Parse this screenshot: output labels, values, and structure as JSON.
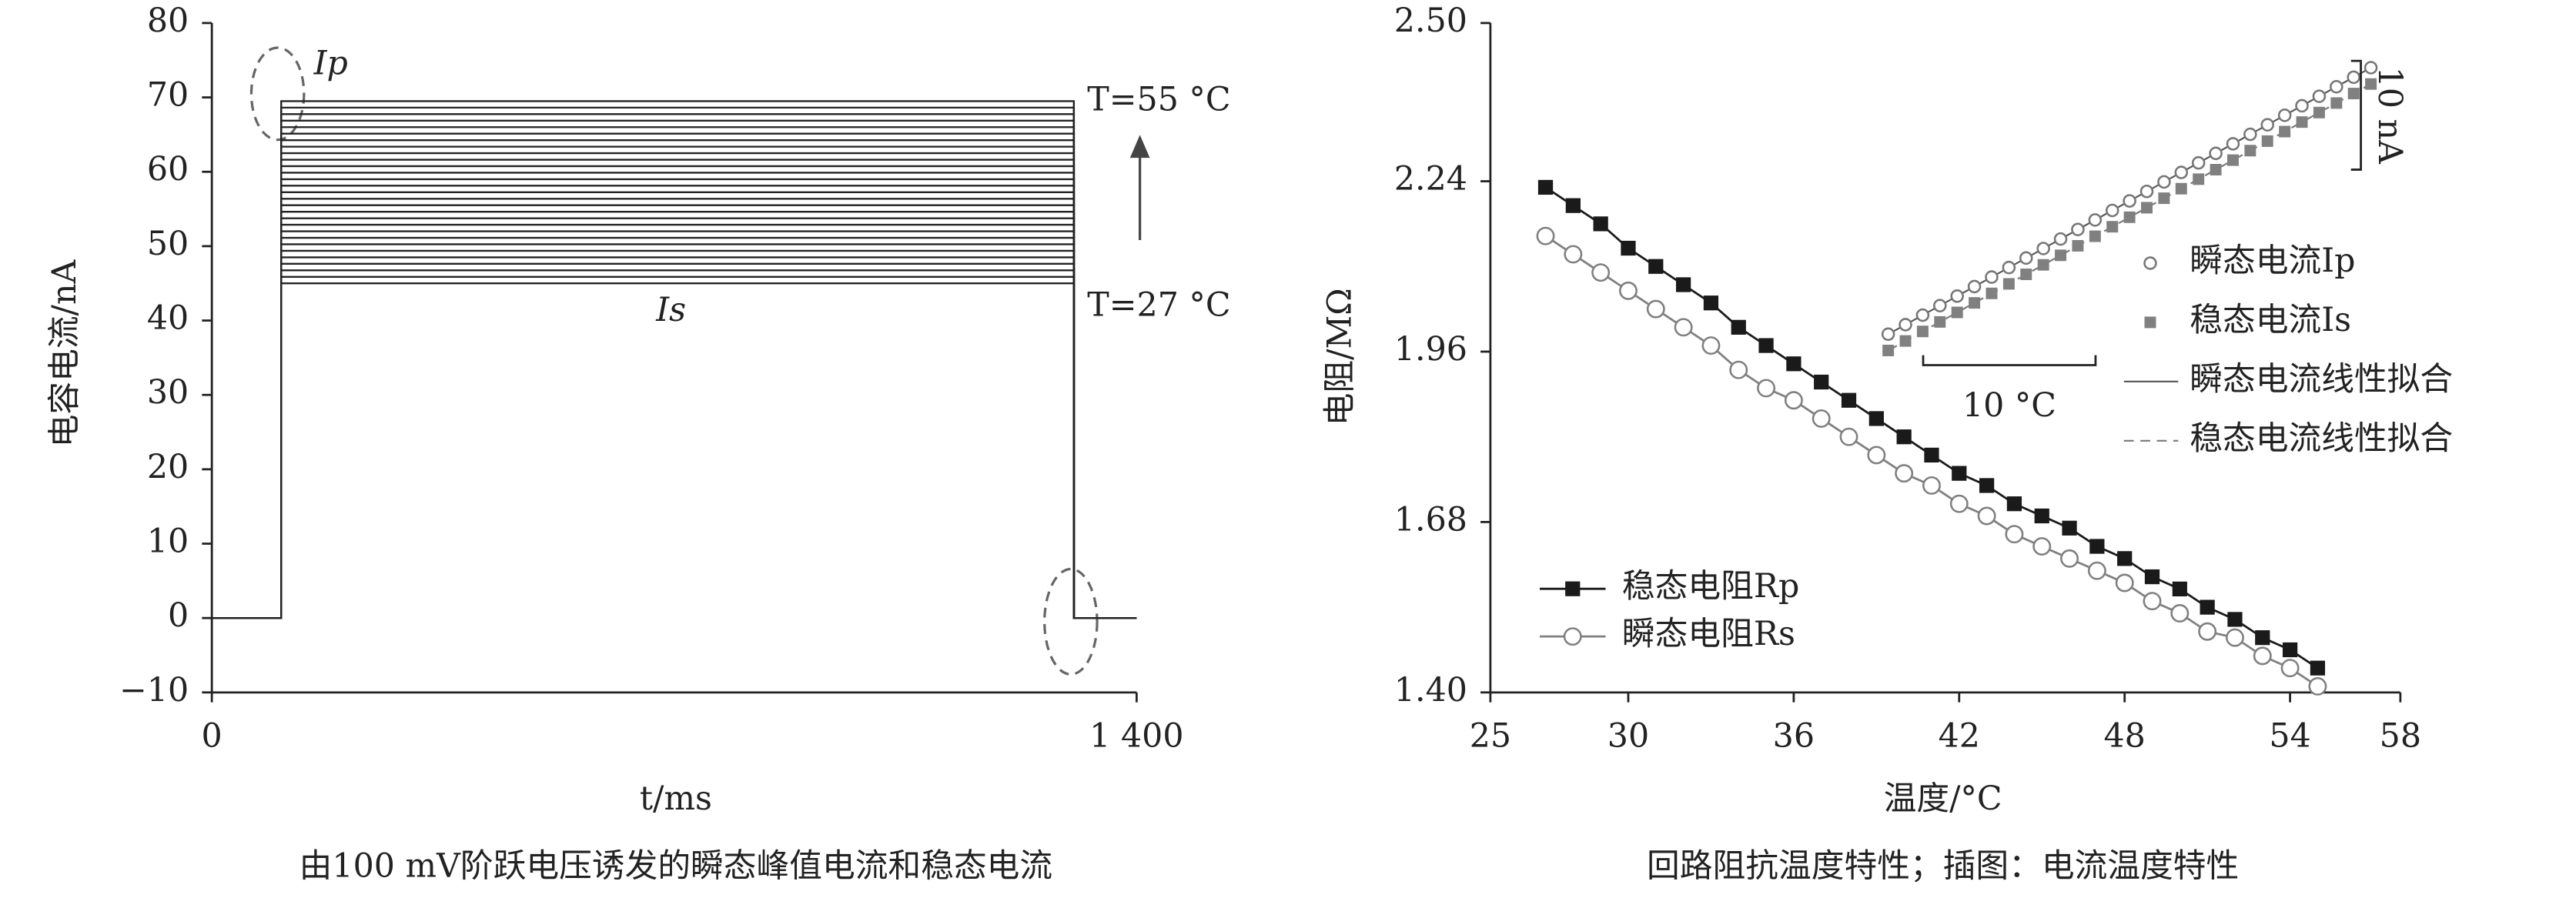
{
  "chart_data": [
    {
      "type": "line",
      "caption": "由100 mV阶跃电压诱发的瞬态峰值电流和稳态电流",
      "xlabel": "t/ms",
      "ylabel": "电容电流/nA",
      "annotations": [
        "Ip",
        "Is",
        "T=55 °C",
        "T=27 °C"
      ],
      "xlim": [
        0,
        1400
      ],
      "xticks": [
        0,
        {
          "value": 1400,
          "label": "1 400"
        }
      ],
      "ylim": [
        -10,
        80
      ],
      "yticks": [
        {
          "value": -10,
          "label": "−10"
        },
        0,
        10,
        20,
        30,
        40,
        50,
        60,
        70,
        80
      ],
      "color": "#222222",
      "x": [
        0,
        105,
        105,
        1305,
        1305,
        1400
      ],
      "series": [
        {
          "values": [
            0,
            0,
            45,
            45,
            0,
            0
          ]
        },
        {
          "values": [
            0,
            0,
            45.875,
            45.875,
            0,
            0
          ]
        },
        {
          "values": [
            0,
            0,
            46.75,
            46.75,
            0,
            0
          ]
        },
        {
          "values": [
            0,
            0,
            47.625,
            47.625,
            0,
            0
          ]
        },
        {
          "values": [
            0,
            0,
            48.5,
            48.5,
            0,
            0
          ]
        },
        {
          "values": [
            0,
            0,
            49.375,
            49.375,
            0,
            0
          ]
        },
        {
          "values": [
            0,
            0,
            50.25,
            50.25,
            0,
            0
          ]
        },
        {
          "values": [
            0,
            0,
            51.125,
            51.125,
            0,
            0
          ]
        },
        {
          "values": [
            0,
            0,
            52,
            52,
            0,
            0
          ]
        },
        {
          "values": [
            0,
            0,
            52.875,
            52.875,
            0,
            0
          ]
        },
        {
          "values": [
            0,
            0,
            53.75,
            53.75,
            0,
            0
          ]
        },
        {
          "values": [
            0,
            0,
            54.625,
            54.625,
            0,
            0
          ]
        },
        {
          "values": [
            0,
            0,
            55.5,
            55.5,
            0,
            0
          ]
        },
        {
          "values": [
            0,
            0,
            56.375,
            56.375,
            0,
            0
          ]
        },
        {
          "values": [
            0,
            0,
            57.25,
            57.25,
            0,
            0
          ]
        },
        {
          "values": [
            0,
            0,
            58.125,
            58.125,
            0,
            0
          ]
        },
        {
          "values": [
            0,
            0,
            59,
            59,
            0,
            0
          ]
        },
        {
          "values": [
            0,
            0,
            59.875,
            59.875,
            0,
            0
          ]
        },
        {
          "values": [
            0,
            0,
            60.75,
            60.75,
            0,
            0
          ]
        },
        {
          "values": [
            0,
            0,
            61.625,
            61.625,
            0,
            0
          ]
        },
        {
          "values": [
            0,
            0,
            62.5,
            62.5,
            0,
            0
          ]
        },
        {
          "values": [
            0,
            0,
            63.375,
            63.375,
            0,
            0
          ]
        },
        {
          "values": [
            0,
            0,
            64.25,
            64.25,
            0,
            0
          ]
        },
        {
          "values": [
            0,
            0,
            65.125,
            65.125,
            0,
            0
          ]
        },
        {
          "values": [
            0,
            0,
            66,
            66,
            0,
            0
          ]
        },
        {
          "values": [
            0,
            0,
            66.875,
            66.875,
            0,
            0
          ]
        },
        {
          "values": [
            0,
            0,
            67.75,
            67.75,
            0,
            0
          ]
        },
        {
          "values": [
            0,
            0,
            68.625,
            68.625,
            0,
            0
          ]
        },
        {
          "values": [
            0,
            0,
            69.5,
            69.5,
            0,
            0
          ]
        }
      ]
    },
    {
      "type": "line",
      "caption": "回路阻抗温度特性；插图：电流温度特性",
      "xlabel": "温度/°C",
      "ylabel": "电阻/MΩ",
      "xlim": [
        25,
        58
      ],
      "xticks": [
        25,
        30,
        36,
        42,
        48,
        54,
        58
      ],
      "ylim": [
        1.4,
        2.5
      ],
      "yticks": [
        {
          "value": 1.4,
          "label": "1.40"
        },
        1.68,
        1.96,
        2.24,
        {
          "value": 2.5,
          "label": "2.50"
        }
      ],
      "x": [
        27,
        28,
        29,
        30,
        31,
        32,
        33,
        34,
        35,
        36,
        37,
        38,
        39,
        40,
        41,
        42,
        43,
        44,
        45,
        46,
        47,
        48,
        49,
        50,
        51,
        52,
        53,
        54,
        55
      ],
      "series": [
        {
          "name": "稳态电阻Rp",
          "color": "#1a1a1a",
          "marker": "square-filled",
          "values": [
            2.23,
            2.2,
            2.17,
            2.13,
            2.1,
            2.07,
            2.04,
            2.0,
            1.97,
            1.94,
            1.91,
            1.88,
            1.85,
            1.82,
            1.79,
            1.76,
            1.74,
            1.71,
            1.69,
            1.67,
            1.64,
            1.62,
            1.59,
            1.57,
            1.54,
            1.52,
            1.49,
            1.47,
            1.44
          ]
        },
        {
          "name": "瞬态电阻Rs",
          "color": "#808080",
          "marker": "circle-open",
          "values": [
            2.15,
            2.12,
            2.09,
            2.06,
            2.03,
            2.0,
            1.97,
            1.93,
            1.9,
            1.88,
            1.85,
            1.82,
            1.79,
            1.76,
            1.74,
            1.71,
            1.69,
            1.66,
            1.64,
            1.62,
            1.6,
            1.58,
            1.55,
            1.53,
            1.5,
            1.49,
            1.46,
            1.44,
            1.41
          ]
        }
      ]
    },
    {
      "type": "scatter",
      "xlim": [
        25.4,
        56.9
      ],
      "ylim": [
        43.2,
        74.2
      ],
      "scale_bars": [
        {
          "value": 10,
          "label": "10 °C"
        },
        {
          "value": 10,
          "label": "10 nA"
        }
      ],
      "x": [
        27,
        28,
        29,
        30,
        31,
        32,
        33,
        34,
        35,
        36,
        37,
        38,
        39,
        40,
        41,
        42,
        43,
        44,
        45,
        46,
        47,
        48,
        49,
        50,
        51,
        52,
        53,
        54,
        55
      ],
      "series": [
        {
          "name": "瞬态电流Ip",
          "color": "#777777",
          "marker": "circle-open",
          "values": [
            46.5,
            47.375,
            48.25,
            49.125,
            50,
            50.875,
            51.75,
            52.625,
            53.5,
            54.375,
            55.25,
            56.125,
            57,
            57.875,
            58.75,
            59.625,
            60.5,
            61.375,
            62.25,
            63.125,
            64,
            64.875,
            65.75,
            66.625,
            67.5,
            68.375,
            69.25,
            70.125,
            71
          ]
        },
        {
          "name": "稳态电流Is",
          "color": "#808080",
          "marker": "square-filled",
          "values": [
            45,
            45.875,
            46.75,
            47.625,
            48.5,
            49.375,
            50.25,
            51.125,
            52,
            52.875,
            53.75,
            54.625,
            55.5,
            56.375,
            57.25,
            58.125,
            59,
            59.875,
            60.75,
            61.625,
            62.5,
            63.375,
            64.25,
            65.125,
            66,
            66.875,
            67.75,
            68.625,
            69.5
          ]
        }
      ],
      "fits": [
        {
          "name": "瞬态电流线性拟合",
          "series": 0,
          "dash": false,
          "color": "#555555"
        },
        {
          "name": "稳态电流线性拟合",
          "series": 1,
          "dash": true,
          "color": "#777777"
        }
      ]
    }
  ]
}
